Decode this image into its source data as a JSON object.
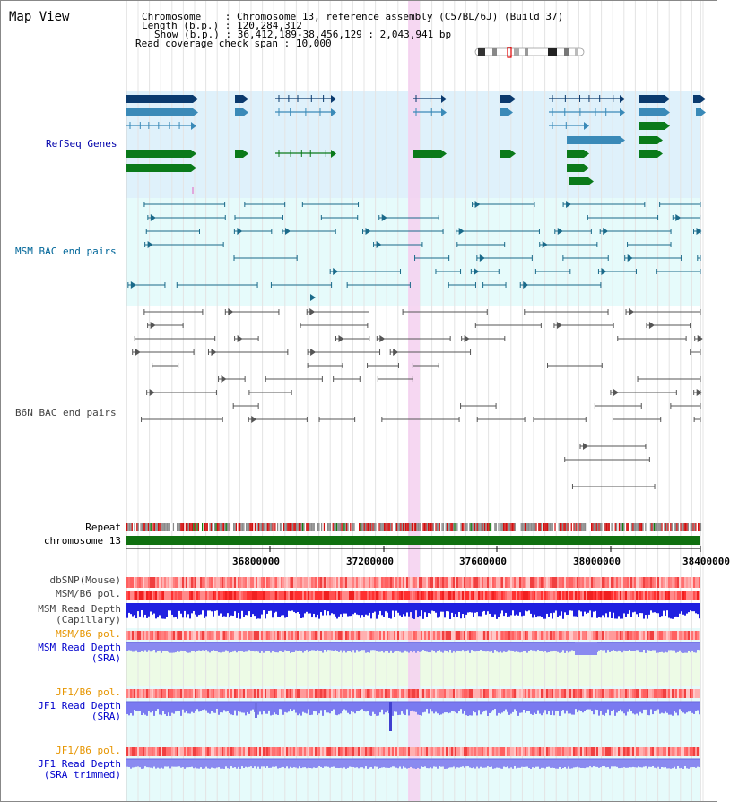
{
  "title": "Map View",
  "info": {
    "chromosome_label": "Chromosome",
    "chromosome_value": "Chromosome 13, reference assembly (C57BL/6J) (Build 37)",
    "length_label": "Length (b.p.)",
    "length_value": "120,284,312",
    "show_label": "Show (b.p.)",
    "show_value": "36,412,189-38,456,129 : 2,043,941 bp",
    "coverage_label": "Read coverage check span",
    "coverage_value": "10,000"
  },
  "tracks": {
    "refseq": "RefSeq Genes",
    "msm_bac": "MSM BAC end pairs",
    "b6n_bac": "B6N BAC end pairs",
    "repeat": "Repeat",
    "chromosome": "chromosome 13",
    "dbsnp": "dbSNP(Mouse)",
    "msm_pol": "MSM/B6 pol.",
    "msm_depth_cap_1": "MSM Read Depth",
    "msm_depth_cap_2": "(Capillary)",
    "msm_pol_2": "MSM/B6 pol.",
    "msm_depth_sra_1": "MSM Read Depth",
    "msm_depth_sra_2": "(SRA)",
    "jf1_pol": "JF1/B6 pol.",
    "jf1_depth_sra_1": "JF1 Read Depth",
    "jf1_depth_sra_2": "(SRA)",
    "jf1_pol_2": "JF1/B6 pol.",
    "jf1_depth_trim_1": "JF1 Read Depth",
    "jf1_depth_trim_2": "(SRA trimmed)"
  },
  "axis": {
    "ticks": [
      "36800000",
      "37200000",
      "37600000",
      "38000000",
      "38400000"
    ]
  },
  "colors": {
    "refseq_bg": "#dff1fb",
    "msm_bg": "#e6fbfb",
    "highlight": "#f5d0f0",
    "chromosome_bar": "#107010",
    "gene_dark": "#0a3a6e",
    "gene_mid": "#3a8ab8",
    "gene_green": "#0a7a1a",
    "msm_line": "#1a6a8a",
    "b6n_line": "#555555"
  }
}
